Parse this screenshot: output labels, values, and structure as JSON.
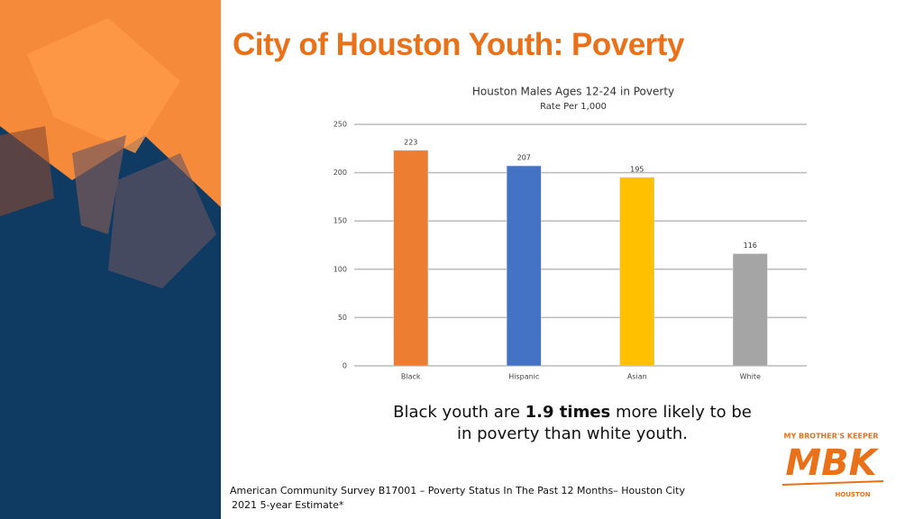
{
  "slide_title": "City of Houston Youth: Poverty",
  "chart_data": {
    "type": "bar",
    "title": "Houston Males Ages 12-24 in Poverty",
    "subtitle": "Rate Per 1,000",
    "categories": [
      "Black",
      "Hispanic",
      "Asian",
      "White"
    ],
    "values": [
      223,
      207,
      195,
      116
    ],
    "colors": [
      "#ed7d31",
      "#4472c4",
      "#ffc000",
      "#a5a5a5"
    ],
    "ylim": [
      0,
      250
    ],
    "yticks": [
      0,
      50,
      100,
      150,
      200,
      250
    ],
    "grid": true
  },
  "callout": {
    "before": "Black youth are",
    "emphasis": "1.9 times",
    "after": "more likely to be in poverty than white youth."
  },
  "source": [
    "American Community Survey B17001 – Poverty Status  In The Past 12 Months– Houston City",
    "2021 5-year Estimate*"
  ],
  "logo": {
    "top": "MY BROTHER'S KEEPER",
    "mark": "MBK",
    "bottom": "HOUSTON"
  }
}
